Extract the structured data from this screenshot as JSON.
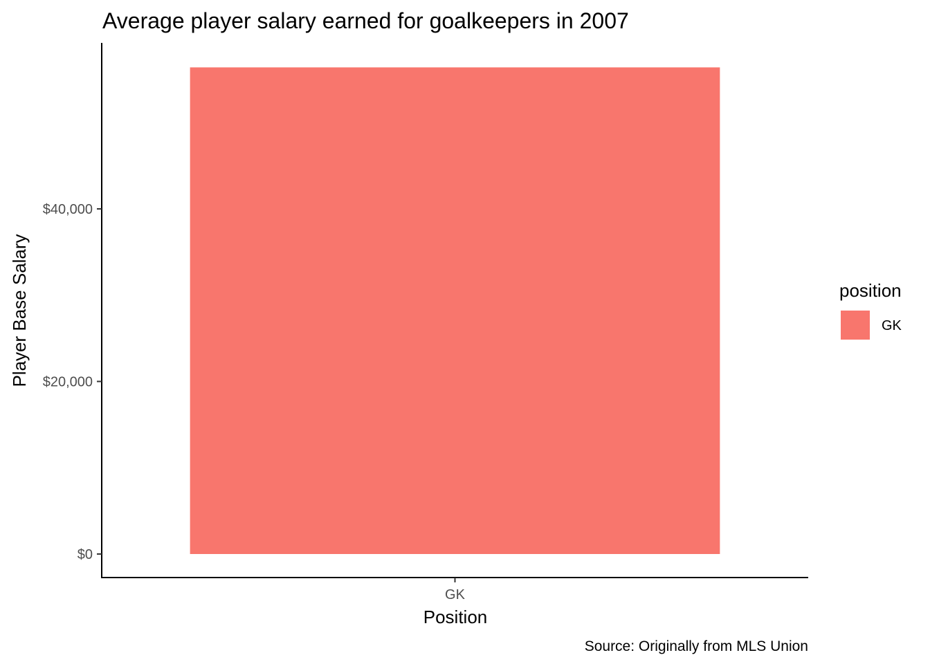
{
  "chart_data": {
    "type": "bar",
    "title": "Average player salary earned for goalkeepers in 2007",
    "xlabel": "Position",
    "ylabel": "Player Base Salary",
    "categories": [
      "GK"
    ],
    "series": [
      {
        "values": [
          56400
        ]
      }
    ],
    "ylim": [
      0,
      60000
    ],
    "y_ticks": [
      0,
      20000,
      40000
    ],
    "y_tick_labels": [
      "$0",
      "$20,000",
      "$40,000"
    ],
    "grid": false,
    "legend": {
      "title": "position",
      "placement": "right",
      "entries": [
        {
          "label": "GK",
          "color": "#F8766D"
        }
      ]
    },
    "caption": "Source: Originally from MLS Union",
    "bar_color": "#F8766D",
    "axis_color": "#000000"
  }
}
